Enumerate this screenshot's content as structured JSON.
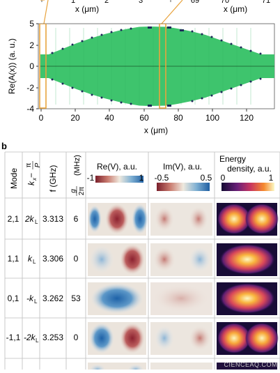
{
  "panel_a": {
    "xlabel": "x (μm)",
    "ylabel": "Re(A(x)) (a. u.)",
    "xticks": [
      "0",
      "20",
      "40",
      "60",
      "80",
      "100",
      "120"
    ],
    "yticks": [
      "5",
      "2",
      "0",
      "-2",
      "-4"
    ],
    "top_xlabel_left": "x (μm)",
    "top_xlabel_right": "x (μm)",
    "top_ticks": [
      "1",
      "2",
      "3",
      "69",
      "70",
      "71"
    ],
    "fill_color": "#3ec46d",
    "highlight_color": "#e8a33d"
  },
  "panel_b": {
    "label": "b",
    "headers": {
      "mode": "Mode",
      "kx": "k",
      "kx_sub": "x",
      "kx_tail": " − ",
      "pi": "π",
      "p": "P",
      "f": "f (GHz)",
      "g_num": "g",
      "g_den": "2π",
      "g_unit": "(MHz)",
      "re": "Re(V), a.u.",
      "im": "Im(V), a.u.",
      "energy_line1": "Energy",
      "energy_line2": "density, a.u."
    },
    "colorbars": {
      "re": [
        "-1",
        "1"
      ],
      "im": [
        "-0.5",
        "0.5"
      ],
      "energy": [
        "0",
        "1"
      ]
    },
    "rows": [
      {
        "mode": "2,1",
        "kx": "2k",
        "kx_sub": "L",
        "f": "3.313",
        "g": "6"
      },
      {
        "mode": "1,1",
        "kx": "k",
        "kx_sub": "L",
        "f": "3.306",
        "g": "0"
      },
      {
        "mode": "0,1",
        "kx": "-k",
        "kx_sub": "L",
        "f": "3.262",
        "g": "53"
      },
      {
        "mode": "-1,1",
        "kx": "-2k",
        "kx_sub": "L",
        "f": "3.253",
        "g": "0"
      }
    ]
  },
  "watermark": "CIENCEAQ.COM"
}
